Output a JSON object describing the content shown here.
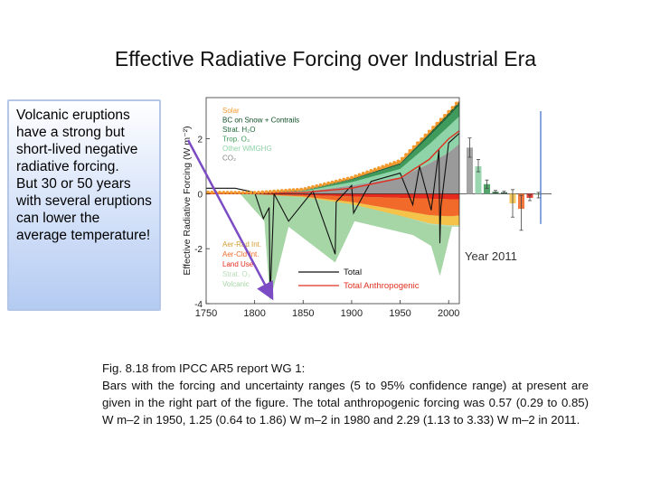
{
  "slide": {
    "title": "Effective Radiative Forcing over Industrial Era"
  },
  "callout": {
    "lines": [
      "Volcanic eruptions have a strong  but short-lived negative radiative forcing.",
      "But 30 or 50 years with several eruptions can lower the average temperature!"
    ]
  },
  "caption": {
    "source": "Fig. 8.18 from IPCC AR5 report WG 1:",
    "body": "Bars with the forcing and uncertainty ranges (5 to 95% confidence range) at present are given in the right part of the figure. The total anthropogenic forcing was 0.57 (0.29 to 0.85) W m–2 in 1950, 1.25 (0.64 to 1.86) W m–2 in 1980 and 2.29 (1.13 to 3.33) W m–2 in 2011."
  },
  "chart_data": {
    "type": "area",
    "title": "",
    "xlabel": "",
    "ylabel": "Effective Radiative Forcing (W m⁻²)",
    "xlim": [
      1750,
      2011
    ],
    "ylim": [
      -4,
      3.5
    ],
    "x_ticks": [
      "1750",
      "1800",
      "1850",
      "1900",
      "1950",
      "2000"
    ],
    "y_ticks": [
      "-4",
      "-2",
      "0",
      "2"
    ],
    "grid": false,
    "legend_upper": [
      "Solar",
      "BC on Snow + Contrails",
      "Strat. H₂O",
      "Trop. O₃",
      "Other WMGHG",
      "CO₂"
    ],
    "legend_lower": [
      "Aer-Rad Int.",
      "Aer-Cld Int.",
      "Land Use",
      "Strat. O₃",
      "Volcanic"
    ],
    "line_legend": [
      "Total",
      "Total Anthropogenic"
    ],
    "bar_panel_label": "Year 2011",
    "colors": {
      "co2": "#9a9a9a",
      "other_wmghg": "#8fd3a8",
      "trop_o3": "#3f9b5b",
      "strat_h2o": "#1f6b3a",
      "bc_snow_contrails": "#0f4f25",
      "solar": "#f29a2e",
      "aer_rad": "#f6c34a",
      "aer_cld": "#f26a2a",
      "land_use": "#e62b1e",
      "strat_o3": "#b8ddb8",
      "volcanic": "#a6d5a6",
      "total": "#111111",
      "total_anthropogenic": "#e03020",
      "arrow": "#7b4cc4"
    },
    "series": [
      {
        "name": "CO₂",
        "x": [
          1750,
          1800,
          1850,
          1900,
          1950,
          1980,
          2000,
          2011
        ],
        "values": [
          0,
          0.02,
          0.06,
          0.3,
          0.6,
          1.1,
          1.5,
          1.82
        ]
      },
      {
        "name": "Other WMGHG",
        "x": [
          1750,
          1800,
          1850,
          1900,
          1950,
          1980,
          2000,
          2011
        ],
        "values": [
          0,
          0.01,
          0.03,
          0.12,
          0.3,
          0.7,
          0.95,
          1.0
        ]
      },
      {
        "name": "Trop. O₃",
        "x": [
          1750,
          1800,
          1850,
          1900,
          1950,
          1980,
          2000,
          2011
        ],
        "values": [
          0,
          0.01,
          0.02,
          0.08,
          0.15,
          0.28,
          0.35,
          0.4
        ]
      },
      {
        "name": "Strat. H₂O",
        "x": [
          1750,
          1800,
          1850,
          1900,
          1950,
          1980,
          2000,
          2011
        ],
        "values": [
          0,
          0,
          0.005,
          0.02,
          0.03,
          0.06,
          0.07,
          0.07
        ]
      },
      {
        "name": "BC on Snow + Contrails",
        "x": [
          1750,
          1800,
          1850,
          1900,
          1950,
          1980,
          2000,
          2011
        ],
        "values": [
          0,
          0,
          0.01,
          0.02,
          0.03,
          0.05,
          0.06,
          0.06
        ]
      },
      {
        "name": "Solar",
        "x": [
          1750,
          1800,
          1850,
          1900,
          1950,
          1980,
          2000,
          2011
        ],
        "values": [
          0.05,
          0.0,
          0.04,
          0.05,
          0.1,
          0.08,
          0.06,
          0.05
        ]
      },
      {
        "name": "Aer-Rad Int.",
        "x": [
          1750,
          1800,
          1850,
          1900,
          1950,
          1980,
          2000,
          2011
        ],
        "values": [
          0,
          0,
          -0.02,
          -0.08,
          -0.2,
          -0.3,
          -0.33,
          -0.35
        ]
      },
      {
        "name": "Aer-Cld Int.",
        "x": [
          1750,
          1800,
          1850,
          1900,
          1950,
          1980,
          2000,
          2011
        ],
        "values": [
          0,
          0,
          -0.05,
          -0.2,
          -0.45,
          -0.6,
          -0.62,
          -0.6
        ]
      },
      {
        "name": "Land Use",
        "x": [
          1750,
          1800,
          1850,
          1900,
          1950,
          1980,
          2000,
          2011
        ],
        "values": [
          0,
          -0.02,
          -0.05,
          -0.1,
          -0.15,
          -0.18,
          -0.2,
          -0.2
        ]
      },
      {
        "name": "Strat. O₃",
        "x": [
          1750,
          1800,
          1850,
          1900,
          1950,
          1980,
          2000,
          2011
        ],
        "values": [
          0,
          0,
          0,
          0,
          0,
          -0.04,
          -0.05,
          -0.05
        ]
      },
      {
        "name": "Volcanic",
        "x": [
          1750,
          1785,
          1810,
          1816,
          1835,
          1883,
          1903,
          1963,
          1982,
          1991,
          2011
        ],
        "values": [
          0,
          0,
          -1.0,
          -3.9,
          -1.2,
          -2.5,
          -1.0,
          -1.5,
          -1.9,
          -3.0,
          -0.1
        ]
      },
      {
        "name": "Total",
        "x": [
          1750,
          1780,
          1800,
          1809,
          1815,
          1816,
          1820,
          1835,
          1860,
          1883,
          1884,
          1900,
          1902,
          1920,
          1950,
          1963,
          1970,
          1982,
          1990,
          1991,
          1992,
          2000,
          2011
        ],
        "values": [
          0.2,
          0.2,
          0.05,
          -0.9,
          -0.5,
          -3.8,
          0.0,
          -1.0,
          0.1,
          -2.2,
          -0.3,
          0.3,
          -0.7,
          0.45,
          0.75,
          -0.4,
          1.0,
          -0.6,
          1.6,
          -1.8,
          -0.5,
          1.85,
          2.2
        ]
      },
      {
        "name": "Total Anthropogenic",
        "x": [
          1750,
          1800,
          1850,
          1900,
          1950,
          1980,
          2000,
          2011
        ],
        "values": [
          0,
          0.02,
          0.05,
          0.2,
          0.57,
          1.25,
          2.0,
          2.29
        ]
      }
    ],
    "bars_2011": [
      {
        "name": "CO₂",
        "value": 1.68,
        "low": 1.33,
        "high": 2.03
      },
      {
        "name": "Other WMGHG",
        "value": 1.0,
        "low": 0.8,
        "high": 1.25
      },
      {
        "name": "Trop. O₃",
        "value": 0.35,
        "low": 0.2,
        "high": 0.5
      },
      {
        "name": "Strat. H₂O",
        "value": 0.07,
        "low": 0.02,
        "high": 0.12
      },
      {
        "name": "BC on Snow + Contrails",
        "value": 0.05,
        "low": 0.02,
        "high": 0.09
      },
      {
        "name": "Aer-Rad Int.",
        "value": -0.35,
        "low": -0.85,
        "high": 0.15
      },
      {
        "name": "Aer-Cld Int.",
        "value": -0.55,
        "low": -1.33,
        "high": -0.06
      },
      {
        "name": "Land Use",
        "value": -0.15,
        "low": -0.25,
        "high": -0.05
      },
      {
        "name": "Strat. O₃",
        "value": -0.05,
        "low": -0.15,
        "high": 0.05
      }
    ]
  }
}
